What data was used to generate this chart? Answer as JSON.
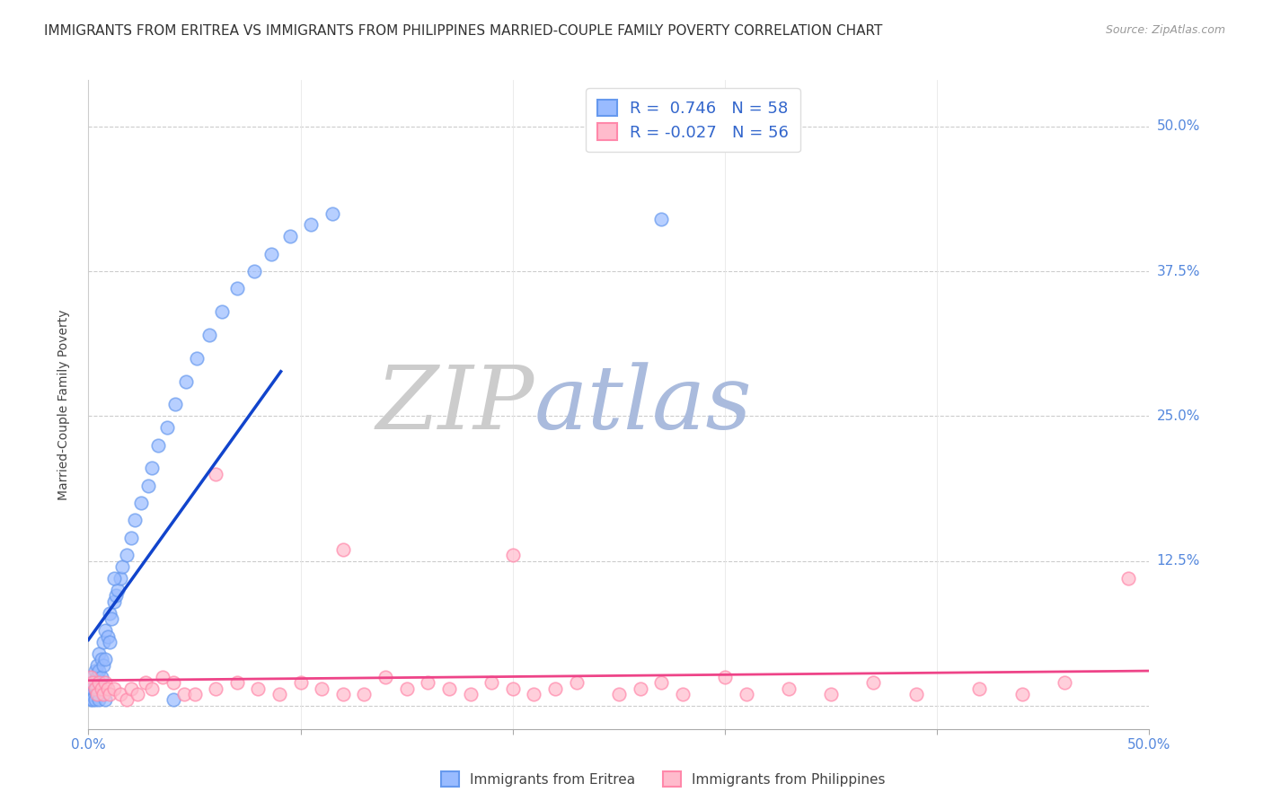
{
  "title": "IMMIGRANTS FROM ERITREA VS IMMIGRANTS FROM PHILIPPINES MARRIED-COUPLE FAMILY POVERTY CORRELATION CHART",
  "source": "Source: ZipAtlas.com",
  "ylabel": "Married-Couple Family Poverty",
  "xlim": [
    0.0,
    0.5
  ],
  "ylim": [
    -0.02,
    0.54
  ],
  "yticks": [
    0.0,
    0.125,
    0.25,
    0.375,
    0.5
  ],
  "ytick_labels": [
    "",
    "12.5%",
    "25.0%",
    "37.5%",
    "50.0%"
  ],
  "xticks": [
    0.0,
    0.1,
    0.2,
    0.3,
    0.4,
    0.5
  ],
  "xtick_labels": [
    "0.0%",
    "",
    "",
    "",
    "",
    "50.0%"
  ],
  "watermark_ZIP": "ZIP",
  "watermark_atlas": "atlas",
  "watermark_ZIP_color": "#cccccc",
  "watermark_atlas_color": "#aabbdd",
  "series1": {
    "name": "Immigrants from Eritrea",
    "color": "#99bbff",
    "edge_color": "#6699ee",
    "line_color": "#1144cc",
    "R": 0.746,
    "N": 58,
    "x": [
      0.001,
      0.001,
      0.001,
      0.001,
      0.002,
      0.002,
      0.002,
      0.002,
      0.003,
      0.003,
      0.003,
      0.004,
      0.004,
      0.004,
      0.005,
      0.005,
      0.005,
      0.006,
      0.006,
      0.007,
      0.007,
      0.008,
      0.008,
      0.009,
      0.01,
      0.01,
      0.011,
      0.012,
      0.013,
      0.014,
      0.015,
      0.016,
      0.018,
      0.02,
      0.022,
      0.025,
      0.028,
      0.03,
      0.033,
      0.037,
      0.041,
      0.046,
      0.051,
      0.057,
      0.063,
      0.07,
      0.078,
      0.086,
      0.095,
      0.105,
      0.115,
      0.002,
      0.003,
      0.005,
      0.008,
      0.012,
      0.04,
      0.27
    ],
    "y": [
      0.005,
      0.01,
      0.015,
      0.02,
      0.01,
      0.015,
      0.02,
      0.025,
      0.01,
      0.015,
      0.03,
      0.015,
      0.025,
      0.035,
      0.02,
      0.03,
      0.045,
      0.025,
      0.04,
      0.035,
      0.055,
      0.04,
      0.065,
      0.06,
      0.055,
      0.08,
      0.075,
      0.09,
      0.095,
      0.1,
      0.11,
      0.12,
      0.13,
      0.145,
      0.16,
      0.175,
      0.19,
      0.205,
      0.225,
      0.24,
      0.26,
      0.28,
      0.3,
      0.32,
      0.34,
      0.36,
      0.375,
      0.39,
      0.405,
      0.415,
      0.425,
      0.005,
      0.005,
      0.005,
      0.005,
      0.11,
      0.005,
      0.42
    ]
  },
  "series2": {
    "name": "Immigrants from Philippines",
    "color": "#ffbbcc",
    "edge_color": "#ff88aa",
    "line_color": "#ee4488",
    "R": -0.027,
    "N": 56,
    "x": [
      0.001,
      0.002,
      0.003,
      0.004,
      0.005,
      0.006,
      0.007,
      0.008,
      0.009,
      0.01,
      0.012,
      0.015,
      0.018,
      0.02,
      0.023,
      0.027,
      0.03,
      0.035,
      0.04,
      0.045,
      0.05,
      0.06,
      0.07,
      0.08,
      0.09,
      0.1,
      0.11,
      0.12,
      0.13,
      0.14,
      0.15,
      0.16,
      0.17,
      0.18,
      0.19,
      0.2,
      0.21,
      0.22,
      0.23,
      0.25,
      0.26,
      0.27,
      0.28,
      0.3,
      0.31,
      0.33,
      0.35,
      0.37,
      0.39,
      0.42,
      0.44,
      0.46,
      0.49,
      0.06,
      0.12,
      0.2
    ],
    "y": [
      0.025,
      0.02,
      0.015,
      0.01,
      0.02,
      0.015,
      0.01,
      0.02,
      0.015,
      0.01,
      0.015,
      0.01,
      0.005,
      0.015,
      0.01,
      0.02,
      0.015,
      0.025,
      0.02,
      0.01,
      0.01,
      0.015,
      0.02,
      0.015,
      0.01,
      0.02,
      0.015,
      0.01,
      0.01,
      0.025,
      0.015,
      0.02,
      0.015,
      0.01,
      0.02,
      0.015,
      0.01,
      0.015,
      0.02,
      0.01,
      0.015,
      0.02,
      0.01,
      0.025,
      0.01,
      0.015,
      0.01,
      0.02,
      0.01,
      0.015,
      0.01,
      0.02,
      0.11,
      0.2,
      0.135,
      0.13
    ]
  },
  "title_fontsize": 11,
  "axis_label_fontsize": 10,
  "tick_fontsize": 11,
  "background_color": "#ffffff"
}
